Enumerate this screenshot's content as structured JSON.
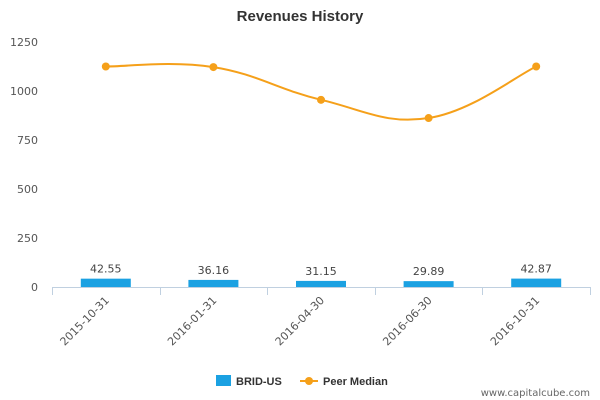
{
  "chart_data": {
    "type": "bar",
    "title": "Revenues History",
    "xlabel": "",
    "ylabel": "",
    "categories": [
      "2015-10-31",
      "2016-01-31",
      "2016-04-30",
      "2016-06-30",
      "2016-10-31"
    ],
    "ylim": [
      0,
      1250
    ],
    "yticks": [
      0,
      250,
      500,
      750,
      1000,
      1250
    ],
    "grid": false,
    "legend_position": "bottom",
    "series": [
      {
        "name": "BRID-US",
        "type": "bar",
        "color": "#1ba1e2",
        "values": [
          42.55,
          36.16,
          31.15,
          29.89,
          42.87
        ],
        "labels": [
          "42.55",
          "36.16",
          "31.15",
          "29.89",
          "42.87"
        ]
      },
      {
        "name": "Peer Median",
        "type": "line",
        "color": "#f5a01a",
        "values": [
          1125,
          1122,
          955,
          862,
          1125
        ]
      }
    ]
  },
  "watermark": "www.capitalcube.com"
}
